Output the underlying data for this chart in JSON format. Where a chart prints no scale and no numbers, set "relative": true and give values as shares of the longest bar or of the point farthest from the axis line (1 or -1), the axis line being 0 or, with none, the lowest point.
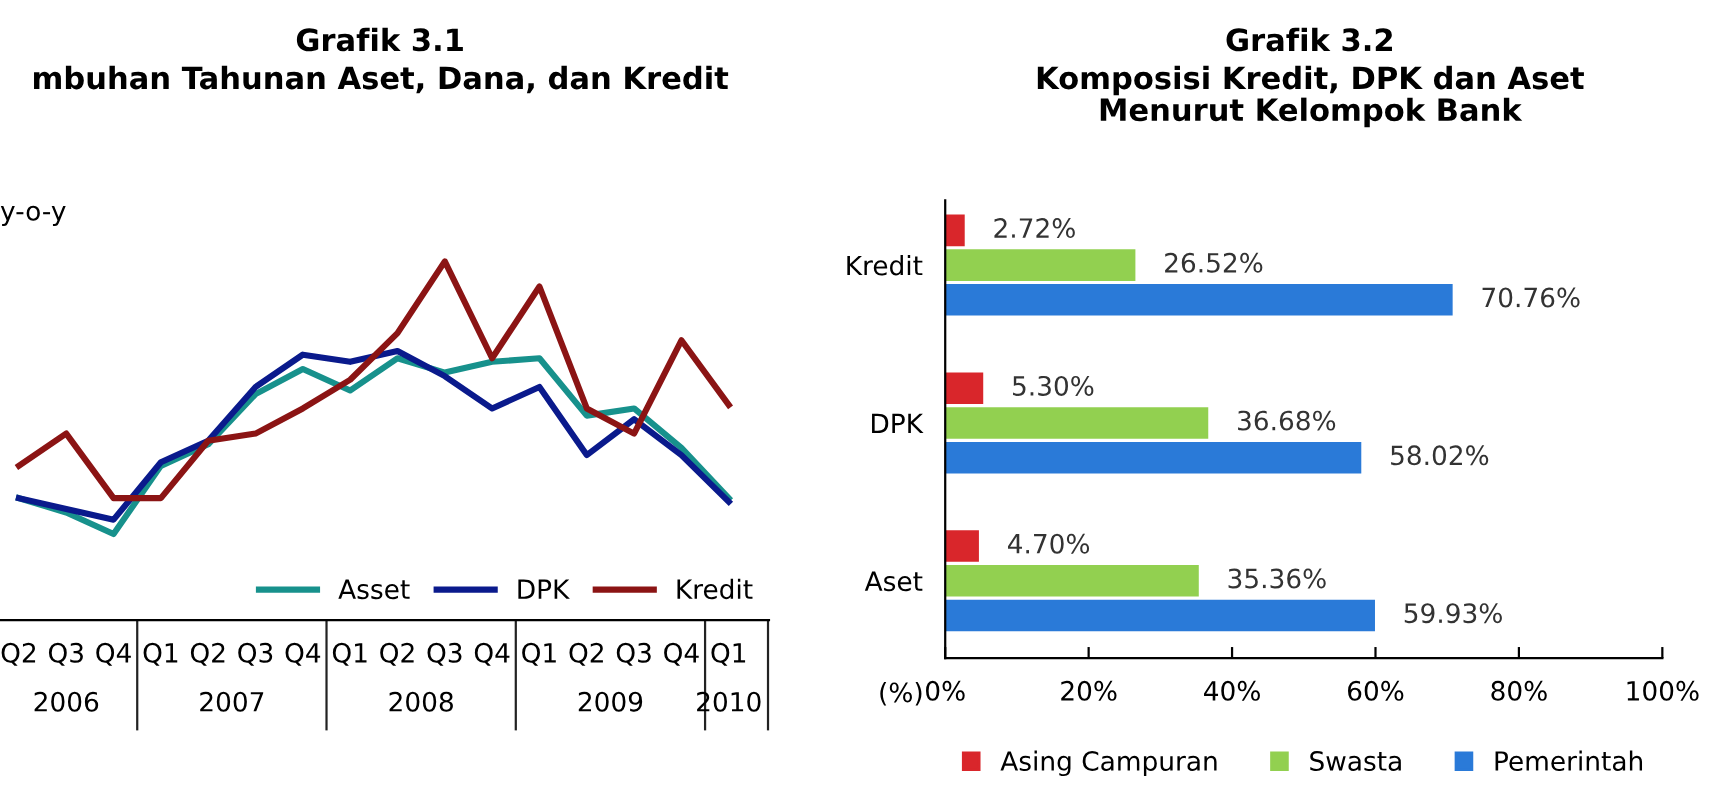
{
  "chart_data": [
    {
      "type": "line",
      "title": "Grafik 3.1",
      "subtitle": "mbuhan Tahunan Aset, Dana, dan Kredit",
      "ylabel": "y-o-y",
      "relative": true,
      "categories": [
        "Q2",
        "Q3",
        "Q4",
        "Q1",
        "Q2",
        "Q3",
        "Q4",
        "Q1",
        "Q2",
        "Q3",
        "Q4",
        "Q1",
        "Q2",
        "Q3",
        "Q4",
        "Q1"
      ],
      "annotations": [
        "2006",
        "2007",
        "2008",
        "2009",
        "2010"
      ],
      "series": [
        {
          "name": "Asset",
          "color": "#17918c",
          "values": [
            0.34,
            0.3,
            0.24,
            0.43,
            0.49,
            0.63,
            0.7,
            0.64,
            0.73,
            0.69,
            0.72,
            0.73,
            0.57,
            0.59,
            0.48,
            0.34
          ]
        },
        {
          "name": "DPK",
          "color": "#0a1a8c",
          "values": [
            0.34,
            0.31,
            0.28,
            0.44,
            0.5,
            0.65,
            0.74,
            0.72,
            0.75,
            0.68,
            0.59,
            0.65,
            0.46,
            0.56,
            0.46,
            0.33
          ]
        },
        {
          "name": "Kredit",
          "color": "#8b1414",
          "values": [
            0.43,
            0.52,
            0.34,
            0.34,
            0.5,
            0.52,
            0.59,
            0.67,
            0.8,
            1,
            0.73,
            0.93,
            0.59,
            0.52,
            0.78,
            0.6
          ]
        }
      ],
      "legend": "bottom right",
      "grid": false,
      "marker": "none",
      "line_style": "solid"
    },
    {
      "type": "bar",
      "orientation": "horizontal",
      "title": "Grafik 3.2",
      "subtitle": "Komposisi Kredit, DPK dan Aset\nMenurut Kelompok Bank",
      "categories": [
        "Kredit",
        "DPK",
        "Aset"
      ],
      "annotations": [
        "(%)"
      ],
      "series": [
        {
          "name": "Asing Campuran",
          "color": "#d9262b",
          "values": [
            2.72,
            5.3,
            4.7
          ],
          "value_labels": [
            "2.72%",
            "5.30%",
            "4.70%"
          ]
        },
        {
          "name": "Swasta",
          "color": "#92d050",
          "values": [
            26.52,
            36.68,
            35.36
          ],
          "value_labels": [
            "26.52%",
            "36.68%",
            "35.36%"
          ]
        },
        {
          "name": "Pemerintah",
          "color": "#2a7ad8",
          "values": [
            70.76,
            58.02,
            59.93
          ],
          "value_labels": [
            "70.76%",
            "58.02%",
            "59.93%"
          ]
        }
      ],
      "xlim": [
        0,
        100
      ],
      "xticks": [
        {
          "value": 0,
          "label": "0%"
        },
        {
          "value": 20,
          "label": "20%"
        },
        {
          "value": 40,
          "label": "40%"
        },
        {
          "value": 60,
          "label": "60%"
        },
        {
          "value": 80,
          "label": "80%"
        },
        {
          "value": 100,
          "label": "100%"
        }
      ],
      "legend": "bottom",
      "grid": false
    }
  ]
}
